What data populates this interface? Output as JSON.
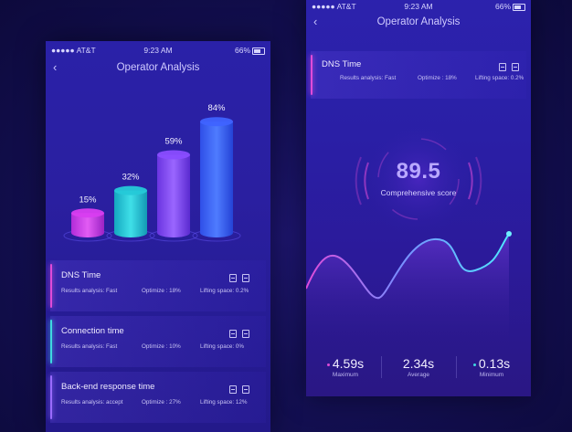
{
  "status": {
    "carrier": "●●●●● AT&T",
    "time": "9:23 AM",
    "battery": "66%"
  },
  "left": {
    "title": "Operator Analysis",
    "back": "‹",
    "chart_data": {
      "type": "bar",
      "categories": [
        "",
        "",
        "",
        ""
      ],
      "values": [
        15,
        32,
        59,
        84
      ],
      "labels": [
        "15%",
        "32%",
        "59%",
        "84%"
      ],
      "colors": [
        "#d83df0",
        "#25c9d8",
        "#8a4dff",
        "#3f63ff"
      ]
    },
    "cards": [
      {
        "name": "DNS Time",
        "results": "Results analysis: Fast",
        "optimize": "Optimize : 18%",
        "lifting": "Lifting space: 0.2%",
        "accent": "#e04bd8"
      },
      {
        "name": "Connection time",
        "results": "Results analysis: Fast",
        "optimize": "Optimize : 10%",
        "lifting": "Lifting space: 0%",
        "accent": "#3fd8e0"
      },
      {
        "name": "Back-end response time",
        "results": "Results analysis: accept",
        "optimize": "Optimize : 27%",
        "lifting": "Lifting space: 12%",
        "accent": "#9a6bff"
      }
    ]
  },
  "right": {
    "title": "Operator Analysis",
    "back": "‹",
    "card": {
      "name": "DNS Time",
      "results": "Results analysis: Fast",
      "optimize": "Optimize : 18%",
      "lifting": "Lifting space: 0.2%",
      "accent": "#e04bd8"
    },
    "score": {
      "value": "89.5",
      "label": "Comprehensive score"
    },
    "stats": [
      {
        "value": "4.59s",
        "label": "Maximum",
        "color": "#e04bd8"
      },
      {
        "value": "2.34s",
        "label": "Average",
        "color": ""
      },
      {
        "value": "0.13s",
        "label": "Minimum",
        "color": "#3fd8e0"
      }
    ]
  }
}
